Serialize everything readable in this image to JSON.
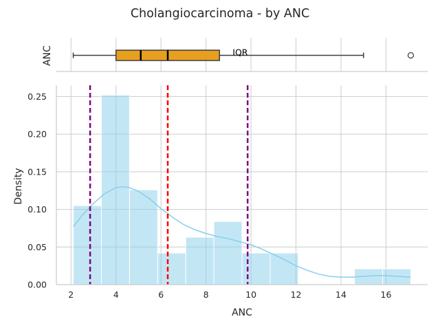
{
  "chart_data": {
    "title": "Cholangiocarcinoma - by ANC",
    "panels": [
      {
        "type": "box",
        "ylabel": "ANC",
        "orientation": "horizontal",
        "xlim": [
          1.35,
          17.85
        ],
        "whisker_low": 2.1,
        "q1": 4.0,
        "median": 5.1,
        "mean": 6.3,
        "q3": 8.6,
        "whisker_high": 15.0,
        "outliers": [
          17.1
        ],
        "annotation": "IQR",
        "box_color": "#e69f1f"
      },
      {
        "type": "histogram",
        "xlabel": "ANC",
        "ylabel": "Density",
        "xlim": [
          1.35,
          17.85
        ],
        "ylim": [
          0,
          0.265
        ],
        "xticks": [
          2,
          4,
          6,
          8,
          10,
          12,
          14,
          16
        ],
        "yticks": [
          0.0,
          0.05,
          0.1,
          0.15,
          0.2,
          0.25
        ],
        "xtick_labels": [
          "2",
          "4",
          "6",
          "8",
          "10",
          "12",
          "14",
          "16"
        ],
        "ytick_labels": [
          "0.00",
          "0.05",
          "0.10",
          "0.15",
          "0.20",
          "0.25"
        ],
        "bins": [
          {
            "x0": 2.1,
            "x1": 3.35,
            "density": 0.105
          },
          {
            "x0": 3.35,
            "x1": 4.6,
            "density": 0.252
          },
          {
            "x0": 4.6,
            "x1": 5.85,
            "density": 0.126
          },
          {
            "x0": 5.85,
            "x1": 7.1,
            "density": 0.042
          },
          {
            "x0": 7.1,
            "x1": 8.35,
            "density": 0.063
          },
          {
            "x0": 8.35,
            "x1": 9.6,
            "density": 0.084
          },
          {
            "x0": 9.6,
            "x1": 10.85,
            "density": 0.042
          },
          {
            "x0": 10.85,
            "x1": 12.1,
            "density": 0.042
          },
          {
            "x0": 12.1,
            "x1": 13.35,
            "density": 0.0
          },
          {
            "x0": 13.35,
            "x1": 14.6,
            "density": 0.0
          },
          {
            "x0": 14.6,
            "x1": 15.85,
            "density": 0.021
          },
          {
            "x0": 15.85,
            "x1": 17.1,
            "density": 0.021
          }
        ],
        "kde": {
          "x": [
            2.1,
            2.5,
            3.0,
            3.5,
            4.0,
            4.3,
            4.6,
            5.0,
            5.5,
            6.0,
            6.5,
            7.0,
            7.5,
            8.0,
            8.5,
            9.0,
            9.5,
            10.0,
            10.5,
            11.0,
            11.5,
            12.0,
            12.5,
            13.0,
            13.5,
            14.0,
            14.5,
            15.0,
            15.5,
            16.0,
            16.5,
            17.1
          ],
          "y": [
            0.077,
            0.092,
            0.108,
            0.121,
            0.129,
            0.13,
            0.129,
            0.124,
            0.114,
            0.101,
            0.09,
            0.08,
            0.073,
            0.068,
            0.064,
            0.061,
            0.057,
            0.053,
            0.047,
            0.04,
            0.033,
            0.025,
            0.019,
            0.014,
            0.011,
            0.01,
            0.01,
            0.011,
            0.012,
            0.012,
            0.011,
            0.01
          ]
        },
        "vlines": [
          {
            "x": 2.85,
            "color": "#800080",
            "style": "dashed"
          },
          {
            "x": 6.3,
            "color": "#ff0000",
            "style": "dashed"
          },
          {
            "x": 9.85,
            "color": "#800080",
            "style": "dashed"
          }
        ],
        "bar_color": "#87ceeb",
        "kde_color": "#87ceeb",
        "grid": true
      }
    ]
  }
}
